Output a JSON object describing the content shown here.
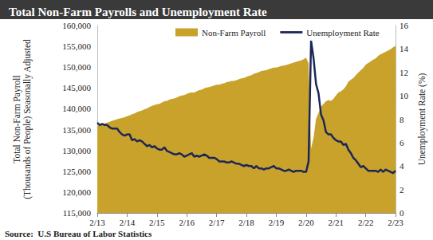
{
  "chart_data": {
    "type": "line",
    "title": "Total Non-Farm Payrolls and Unemployment Rate",
    "source": "Source:  U.S Bureau of Labor Statistics",
    "y_label": "Total Non-Farm Payroll\n(Thousands of People) Seasonally Adjusted",
    "y2_label": "Unemployment Rate (%)",
    "legend": "top",
    "grid": false,
    "categories": [
      "2/13",
      null,
      null,
      null,
      null,
      null,
      null,
      null,
      null,
      null,
      null,
      null,
      "2/14",
      null,
      null,
      null,
      null,
      null,
      null,
      null,
      null,
      null,
      null,
      null,
      "2/15",
      null,
      null,
      null,
      null,
      null,
      null,
      null,
      null,
      null,
      null,
      null,
      "2/16",
      null,
      null,
      null,
      null,
      null,
      null,
      null,
      null,
      null,
      null,
      null,
      "2/17",
      null,
      null,
      null,
      null,
      null,
      null,
      null,
      null,
      null,
      null,
      null,
      "2/18",
      null,
      null,
      null,
      null,
      null,
      null,
      null,
      null,
      null,
      null,
      null,
      "2/19",
      null,
      null,
      null,
      null,
      null,
      null,
      null,
      null,
      null,
      null,
      null,
      "2/20",
      null,
      null,
      null,
      null,
      null,
      null,
      null,
      null,
      null,
      null,
      null,
      "2/21",
      null,
      null,
      null,
      null,
      null,
      null,
      null,
      null,
      null,
      null,
      null,
      "2/22",
      null,
      null,
      null,
      null,
      null,
      null,
      null,
      null,
      null,
      null,
      null,
      "2/23"
    ],
    "ylim": [
      115000,
      160000
    ],
    "yticks": [
      {
        "value": 115000,
        "label": "115,000"
      },
      {
        "value": 120000,
        "label": "120,000"
      },
      {
        "value": 125000,
        "label": "125,000"
      },
      {
        "value": 130000,
        "label": "130,000"
      },
      {
        "value": 135000,
        "label": "135,000"
      },
      {
        "value": 140000,
        "label": "140,000"
      },
      {
        "value": 145000,
        "label": "145,000"
      },
      {
        "value": 150000,
        "label": "150,000"
      },
      {
        "value": 155000,
        "label": "155,000"
      },
      {
        "value": 160000,
        "label": "160,000"
      }
    ],
    "y2lim": [
      0,
      16
    ],
    "y2ticks": [
      0,
      2,
      4,
      6,
      8,
      10,
      12,
      14,
      16
    ],
    "series": [
      {
        "name": "Non-Farm Payroll",
        "type": "area",
        "color": "#c9a22b",
        "values": [
          135900,
          136100,
          136300,
          136500,
          136700,
          136900,
          137100,
          137300,
          137500,
          137700,
          137800,
          138000,
          138200,
          138400,
          138700,
          138900,
          139200,
          139400,
          139600,
          139900,
          140100,
          140400,
          140700,
          140900,
          141100,
          141200,
          141500,
          141800,
          141900,
          142200,
          142400,
          142500,
          142700,
          143000,
          143200,
          143300,
          143600,
          143800,
          143900,
          143900,
          144200,
          144500,
          144600,
          144900,
          145100,
          145200,
          145400,
          145600,
          145800,
          145800,
          146000,
          146100,
          146400,
          146500,
          146700,
          146700,
          146900,
          147100,
          147300,
          147400,
          147700,
          147900,
          148100,
          148400,
          148600,
          148800,
          149100,
          149200,
          149300,
          149500,
          149700,
          149900,
          149900,
          150100,
          150300,
          150400,
          150500,
          150700,
          150900,
          151100,
          151300,
          151500,
          151600,
          151900,
          152300,
          150900,
          130400,
          133100,
          137600,
          139000,
          140500,
          141200,
          141800,
          142100,
          141900,
          142400,
          143200,
          143900,
          144200,
          144700,
          145400,
          146500,
          147000,
          147400,
          148100,
          148700,
          149300,
          149800,
          150600,
          151000,
          151400,
          151800,
          152100,
          152700,
          153100,
          153400,
          153700,
          154000,
          154300,
          154800,
          155100
        ]
      },
      {
        "name": "Unemployment Rate",
        "type": "line",
        "axis": "y2",
        "color": "#1c2757",
        "values": [
          7.7,
          7.5,
          7.6,
          7.5,
          7.5,
          7.3,
          7.2,
          7.2,
          7.2,
          6.9,
          6.7,
          6.6,
          6.7,
          6.7,
          6.2,
          6.3,
          6.1,
          6.2,
          6.1,
          5.9,
          5.7,
          5.8,
          5.6,
          5.7,
          5.5,
          5.4,
          5.4,
          5.6,
          5.3,
          5.2,
          5.1,
          5.0,
          5.0,
          5.1,
          5.0,
          4.8,
          4.9,
          5.0,
          5.1,
          4.8,
          4.9,
          4.8,
          4.9,
          5.0,
          4.9,
          4.7,
          4.7,
          4.7,
          4.6,
          4.4,
          4.4,
          4.4,
          4.3,
          4.3,
          4.4,
          4.3,
          4.2,
          4.2,
          4.1,
          4.0,
          4.1,
          4.0,
          4.0,
          3.8,
          4.0,
          3.8,
          3.8,
          3.7,
          3.8,
          3.8,
          3.9,
          4.0,
          3.8,
          3.8,
          3.7,
          3.6,
          3.6,
          3.7,
          3.6,
          3.5,
          3.6,
          3.6,
          3.6,
          3.5,
          3.5,
          4.4,
          14.7,
          13.2,
          11.0,
          10.2,
          8.4,
          7.9,
          6.9,
          6.7,
          6.7,
          6.4,
          6.2,
          6.1,
          6.1,
          5.8,
          5.9,
          5.4,
          5.1,
          4.7,
          4.5,
          4.2,
          3.9,
          4.0,
          3.8,
          3.6,
          3.6,
          3.6,
          3.6,
          3.5,
          3.7,
          3.5,
          3.7,
          3.6,
          3.5,
          3.4,
          3.6
        ]
      }
    ]
  }
}
